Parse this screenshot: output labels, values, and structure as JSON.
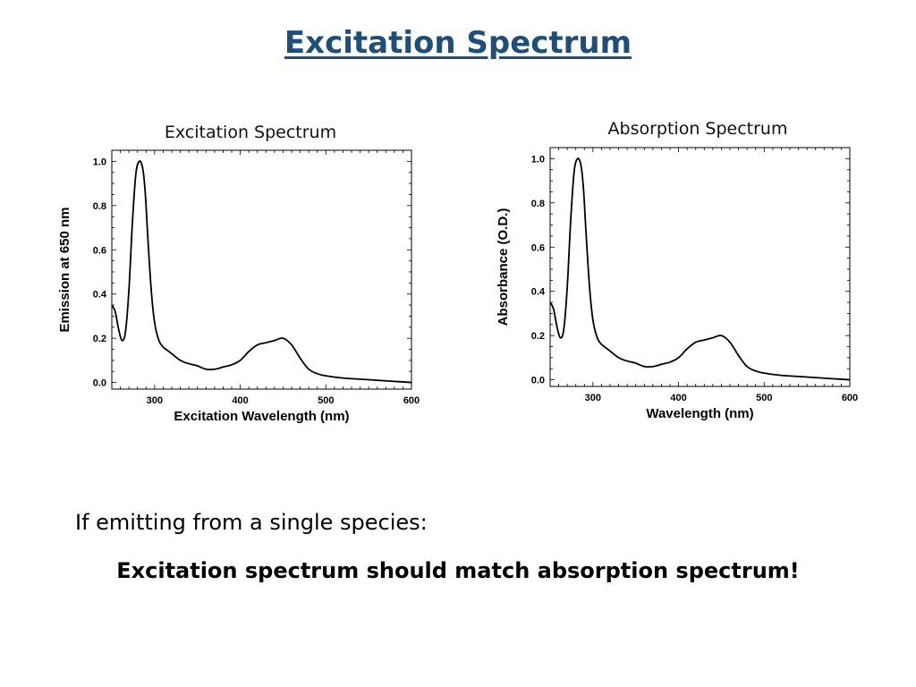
{
  "slide": {
    "title": "Excitation Spectrum",
    "body_text": "If emitting from a single species:",
    "conclusion": "Excitation spectrum should match absorption spectrum!"
  },
  "chart_data": [
    {
      "type": "line",
      "caption": "Excitation Spectrum",
      "xlabel": "Excitation Wavelength (nm)",
      "ylabel": "Emission at 650 nm",
      "xlim": [
        250,
        600
      ],
      "ylim": [
        -0.03,
        1.05
      ],
      "xticks": [
        300,
        400,
        500,
        600
      ],
      "yticks": [
        0.0,
        0.2,
        0.4,
        0.6,
        0.8,
        1.0
      ],
      "ytick_labels": [
        "0.0",
        "0.2",
        "0.4",
        "0.6",
        "0.8",
        "1.0"
      ],
      "grid": false,
      "series": [
        {
          "color": "#000000",
          "x": [
            250,
            254,
            258,
            262,
            266,
            270,
            274,
            278,
            282,
            286,
            289,
            292,
            296,
            300,
            305,
            310,
            315,
            320,
            330,
            340,
            350,
            360,
            370,
            380,
            390,
            400,
            410,
            420,
            430,
            440,
            450,
            460,
            470,
            480,
            490,
            500,
            520,
            540,
            560,
            580,
            600
          ],
          "y": [
            0.35,
            0.32,
            0.24,
            0.19,
            0.23,
            0.42,
            0.72,
            0.94,
            1.0,
            0.97,
            0.86,
            0.66,
            0.42,
            0.27,
            0.19,
            0.16,
            0.145,
            0.13,
            0.1,
            0.085,
            0.075,
            0.06,
            0.06,
            0.07,
            0.08,
            0.1,
            0.14,
            0.17,
            0.18,
            0.19,
            0.2,
            0.17,
            0.11,
            0.06,
            0.04,
            0.03,
            0.02,
            0.015,
            0.01,
            0.005,
            0.0
          ]
        }
      ]
    },
    {
      "type": "line",
      "caption": "Absorption Spectrum",
      "xlabel": "Wavelength (nm)",
      "ylabel": "Absorbance (O.D.)",
      "xlim": [
        250,
        600
      ],
      "ylim": [
        -0.03,
        1.05
      ],
      "xticks": [
        300,
        400,
        500,
        600
      ],
      "yticks": [
        0.0,
        0.2,
        0.4,
        0.6,
        0.8,
        1.0
      ],
      "ytick_labels": [
        "0.0",
        "0.2",
        "0.4",
        "0.6",
        "0.8",
        "1.0"
      ],
      "grid": false,
      "series": [
        {
          "color": "#000000",
          "x": [
            250,
            254,
            258,
            262,
            266,
            270,
            274,
            278,
            282,
            286,
            289,
            292,
            296,
            300,
            305,
            310,
            315,
            320,
            330,
            340,
            350,
            360,
            370,
            380,
            390,
            400,
            410,
            420,
            430,
            440,
            450,
            460,
            470,
            480,
            490,
            500,
            520,
            540,
            560,
            580,
            600
          ],
          "y": [
            0.35,
            0.32,
            0.24,
            0.19,
            0.23,
            0.42,
            0.72,
            0.94,
            1.0,
            0.97,
            0.86,
            0.66,
            0.42,
            0.27,
            0.19,
            0.16,
            0.145,
            0.13,
            0.1,
            0.085,
            0.075,
            0.06,
            0.06,
            0.07,
            0.08,
            0.1,
            0.14,
            0.17,
            0.18,
            0.19,
            0.2,
            0.17,
            0.11,
            0.06,
            0.04,
            0.03,
            0.02,
            0.015,
            0.01,
            0.005,
            0.0
          ]
        }
      ]
    }
  ]
}
